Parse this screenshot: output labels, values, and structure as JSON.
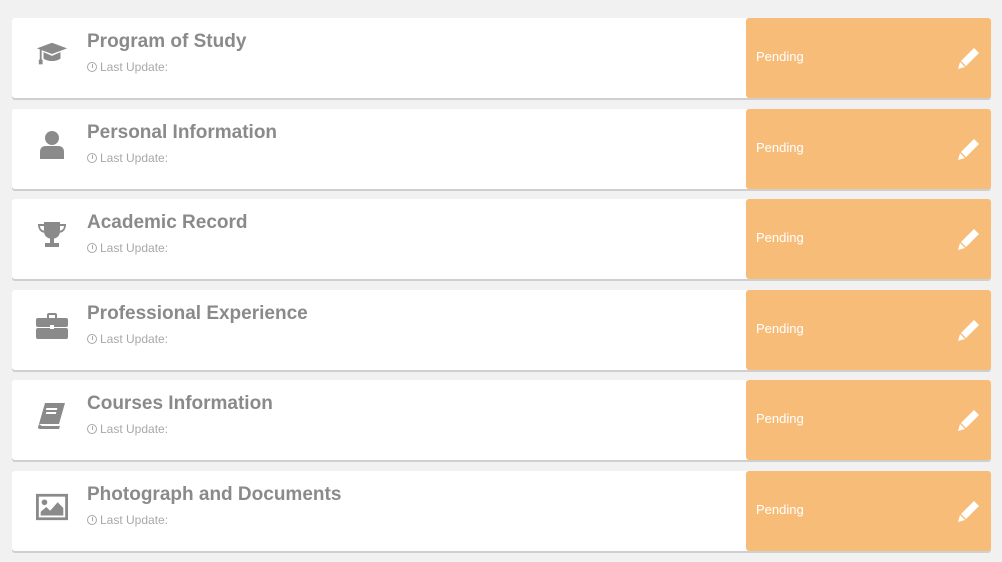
{
  "colors": {
    "pending": "#f7bd78",
    "text": "#8a8a8a"
  },
  "sections": [
    {
      "title": "Program of Study",
      "icon": "graduation-cap-icon",
      "last_update": "Last Update:",
      "status": "Pending"
    },
    {
      "title": "Personal Information",
      "icon": "user-icon",
      "last_update": "Last Update:",
      "status": "Pending"
    },
    {
      "title": "Academic Record",
      "icon": "trophy-icon",
      "last_update": "Last Update:",
      "status": "Pending"
    },
    {
      "title": "Professional Experience",
      "icon": "briefcase-icon",
      "last_update": "Last Update:",
      "status": "Pending"
    },
    {
      "title": "Courses Information",
      "icon": "book-icon",
      "last_update": "Last Update:",
      "status": "Pending"
    },
    {
      "title": "Photograph and Documents",
      "icon": "image-icon",
      "last_update": "Last Update:",
      "status": "Pending"
    }
  ]
}
